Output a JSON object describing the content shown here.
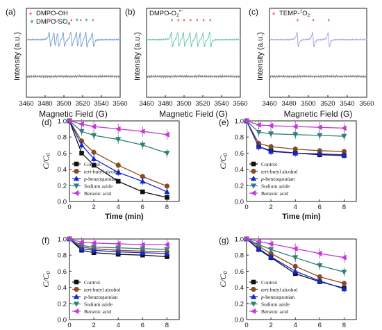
{
  "chart_data": [
    {
      "id": "a",
      "type": "line",
      "panel_label": "(a)",
      "xlabel": "Magnetic Field (G)",
      "ylabel": "Intensity (a.u.)",
      "xlim": [
        3460,
        3560
      ],
      "x_ticks": [
        "3460",
        "3480",
        "3500",
        "3520",
        "3540",
        "3560"
      ],
      "legend": [
        {
          "name": "DMPO-OH",
          "marker": "♦",
          "color": "#f06b6b"
        },
        {
          "name": "DMPO-SO",
          "sub": "4",
          "sup": "",
          "marker": "▼",
          "color": "#3cb5b0"
        }
      ],
      "signal_color": "#6f9ec9",
      "baseline_color": "#7a7a7a",
      "peak_markers": [
        {
          "x": 3485,
          "marker": "♦",
          "color": "#f06b6b"
        },
        {
          "x": 3490,
          "marker": "▼",
          "color": "#3cb5b0"
        },
        {
          "x": 3494,
          "marker": "♦",
          "color": "#f06b6b"
        },
        {
          "x": 3500,
          "marker": "▼",
          "color": "#3cb5b0"
        },
        {
          "x": 3508,
          "marker": "♦",
          "color": "#f06b6b"
        },
        {
          "x": 3514,
          "marker": "▼",
          "color": "#3cb5b0"
        },
        {
          "x": 3518,
          "marker": "♦",
          "color": "#f06b6b"
        },
        {
          "x": 3524,
          "marker": "▼",
          "color": "#3cb5b0"
        },
        {
          "x": 3531,
          "marker": "♦",
          "color": "#f06b6b"
        }
      ]
    },
    {
      "id": "b",
      "type": "line",
      "panel_label": "(b)",
      "xlabel": "Magnetic Field (G)",
      "ylabel": "Intensity (a.u.)",
      "xlim": [
        3460,
        3560
      ],
      "x_ticks": [
        "3460",
        "3480",
        "3500",
        "3520",
        "3540",
        "3560"
      ],
      "legend": [
        {
          "name": "DMPO-O",
          "sub": "2",
          "sup": "•−",
          "marker": "",
          "color": "#3cb5b0"
        }
      ],
      "signal_color": "#5fc4a8",
      "baseline_color": "#7a7a7a",
      "peak_markers": [
        {
          "x": 3487,
          "marker": "♦",
          "color": "#f06b6b"
        },
        {
          "x": 3494,
          "marker": "♦",
          "color": "#f06b6b"
        },
        {
          "x": 3500,
          "marker": "♦",
          "color": "#f06b6b"
        },
        {
          "x": 3507,
          "marker": "♦",
          "color": "#f06b6b"
        },
        {
          "x": 3514,
          "marker": "♦",
          "color": "#f06b6b"
        },
        {
          "x": 3521,
          "marker": "♦",
          "color": "#f06b6b"
        },
        {
          "x": 3528,
          "marker": "♦",
          "color": "#f06b6b"
        }
      ]
    },
    {
      "id": "c",
      "type": "line",
      "panel_label": "(c)",
      "xlabel": "Magnetic Field (G)",
      "ylabel": "Intensity (a.u.)",
      "xlim": [
        3460,
        3560
      ],
      "x_ticks": [
        "3460",
        "3480",
        "3500",
        "3520",
        "3540",
        "3560"
      ],
      "legend": [
        {
          "name": "TEMP-",
          "sub": "",
          "sup": "1",
          "tail": "O",
          "sub2": "2",
          "marker": "♦",
          "color": "#f06b6b"
        }
      ],
      "signal_color": "#a99bd4",
      "baseline_color": "#7a7a7a",
      "peak_markers": [
        {
          "x": 3489,
          "marker": "♦",
          "color": "#f06b6b"
        },
        {
          "x": 3505,
          "marker": "♦",
          "color": "#f06b6b"
        },
        {
          "x": 3521,
          "marker": "♦",
          "color": "#f06b6b"
        }
      ]
    },
    {
      "id": "d",
      "type": "line",
      "panel_label": "(d)",
      "xlabel": "Time (min)",
      "ylabel": "C/C",
      "ylabel_sub": "0",
      "xlim": [
        0,
        9
      ],
      "ylim": [
        0,
        1.0
      ],
      "x_ticks": [
        "0",
        "2",
        "4",
        "6",
        "8"
      ],
      "y_ticks": [
        "0.0",
        "0.2",
        "0.4",
        "0.6",
        "0.8",
        "1.0"
      ],
      "x": [
        0,
        1,
        2,
        4,
        6,
        8
      ],
      "series": [
        {
          "name": "Control",
          "values": [
            1.0,
            0.6,
            0.45,
            0.25,
            0.12,
            0.05
          ]
        },
        {
          "name": "tert-butyl alcohol",
          "values": [
            1.0,
            0.75,
            0.61,
            0.45,
            0.31,
            0.19
          ]
        },
        {
          "name": "p-benzoquonian",
          "values": [
            1.0,
            0.7,
            0.53,
            0.36,
            0.25,
            0.12
          ]
        },
        {
          "name": "Sodium azide",
          "values": [
            1.0,
            0.87,
            0.82,
            0.77,
            0.7,
            0.6
          ]
        },
        {
          "name": "Benzoic acid",
          "values": [
            1.0,
            0.96,
            0.93,
            0.9,
            0.87,
            0.83
          ]
        }
      ]
    },
    {
      "id": "e",
      "type": "line",
      "panel_label": "(e)",
      "xlabel": "Time (min)",
      "ylabel": "C/C",
      "ylabel_sub": "0",
      "xlim": [
        0,
        9
      ],
      "ylim": [
        0,
        1.0
      ],
      "x_ticks": [
        "0",
        "2",
        "4",
        "6",
        "8"
      ],
      "y_ticks": [
        "0.0",
        "0.2",
        "0.4",
        "0.6",
        "0.8",
        "1.0"
      ],
      "x": [
        0,
        1,
        2,
        4,
        6,
        8
      ],
      "series": [
        {
          "name": "Control",
          "values": [
            1.0,
            0.68,
            0.63,
            0.6,
            0.58,
            0.57
          ]
        },
        {
          "name": "tert-butyl alcohol",
          "values": [
            1.0,
            0.72,
            0.68,
            0.65,
            0.63,
            0.62
          ]
        },
        {
          "name": "p-benzoquonian",
          "values": [
            1.0,
            0.68,
            0.62,
            0.6,
            0.59,
            0.58
          ]
        },
        {
          "name": "Sodium azide",
          "values": [
            1.0,
            0.86,
            0.84,
            0.83,
            0.82,
            0.81
          ]
        },
        {
          "name": "Benzoic acid",
          "values": [
            1.0,
            0.95,
            0.94,
            0.93,
            0.92,
            0.91
          ]
        }
      ]
    },
    {
      "id": "f",
      "type": "line",
      "panel_label": "(f)",
      "xlabel": "Time (min)",
      "ylabel": "C/C",
      "ylabel_sub": "0",
      "xlim": [
        0,
        9
      ],
      "ylim": [
        0,
        1.0
      ],
      "x_ticks": [
        "0",
        "2",
        "4",
        "6",
        "8"
      ],
      "y_ticks": [
        "0.0",
        "0.2",
        "0.4",
        "0.6",
        "0.8",
        "1.0"
      ],
      "x": [
        0,
        1,
        2,
        4,
        6,
        8
      ],
      "series": [
        {
          "name": "Control",
          "values": [
            1.0,
            0.86,
            0.83,
            0.81,
            0.8,
            0.78
          ]
        },
        {
          "name": "tert-butyl alcohol",
          "values": [
            1.0,
            0.9,
            0.88,
            0.86,
            0.85,
            0.84
          ]
        },
        {
          "name": "p-benzoquonian",
          "values": [
            1.0,
            0.88,
            0.86,
            0.84,
            0.83,
            0.82
          ]
        },
        {
          "name": "Sodium azide",
          "values": [
            1.0,
            0.92,
            0.9,
            0.89,
            0.88,
            0.87
          ]
        },
        {
          "name": "Benzoic acid",
          "values": [
            1.0,
            0.96,
            0.95,
            0.94,
            0.93,
            0.93
          ]
        }
      ]
    },
    {
      "id": "g",
      "type": "line",
      "panel_label": "(g)",
      "xlabel": "Time (min)",
      "ylabel": "C/C",
      "ylabel_sub": "0",
      "xlim": [
        0,
        9
      ],
      "ylim": [
        0,
        1.0
      ],
      "x_ticks": [
        "0",
        "2",
        "4",
        "6",
        "8"
      ],
      "y_ticks": [
        "0.0",
        "0.2",
        "0.4",
        "0.6",
        "0.8",
        "1.0"
      ],
      "x": [
        0,
        1,
        2,
        4,
        6,
        8
      ],
      "series": [
        {
          "name": "Control",
          "values": [
            1.0,
            0.87,
            0.77,
            0.57,
            0.47,
            0.39
          ]
        },
        {
          "name": "tert-butyl alcohol",
          "values": [
            1.0,
            0.91,
            0.82,
            0.66,
            0.53,
            0.45
          ]
        },
        {
          "name": "p-benzoquonian",
          "values": [
            1.0,
            0.88,
            0.78,
            0.6,
            0.48,
            0.38
          ]
        },
        {
          "name": "Sodium azide",
          "values": [
            1.0,
            0.93,
            0.87,
            0.77,
            0.67,
            0.59
          ]
        },
        {
          "name": "Benzoic acid",
          "values": [
            1.0,
            0.97,
            0.94,
            0.88,
            0.82,
            0.77
          ]
        }
      ]
    }
  ],
  "series_styles": [
    {
      "color": "#111111",
      "marker": "square"
    },
    {
      "color": "#8c4a1e",
      "marker": "circle"
    },
    {
      "color": "#1226d6",
      "marker": "triangle-up"
    },
    {
      "color": "#2e7f78",
      "marker": "triangle-down"
    },
    {
      "color": "#c23ad6",
      "marker": "triangle-left"
    }
  ]
}
